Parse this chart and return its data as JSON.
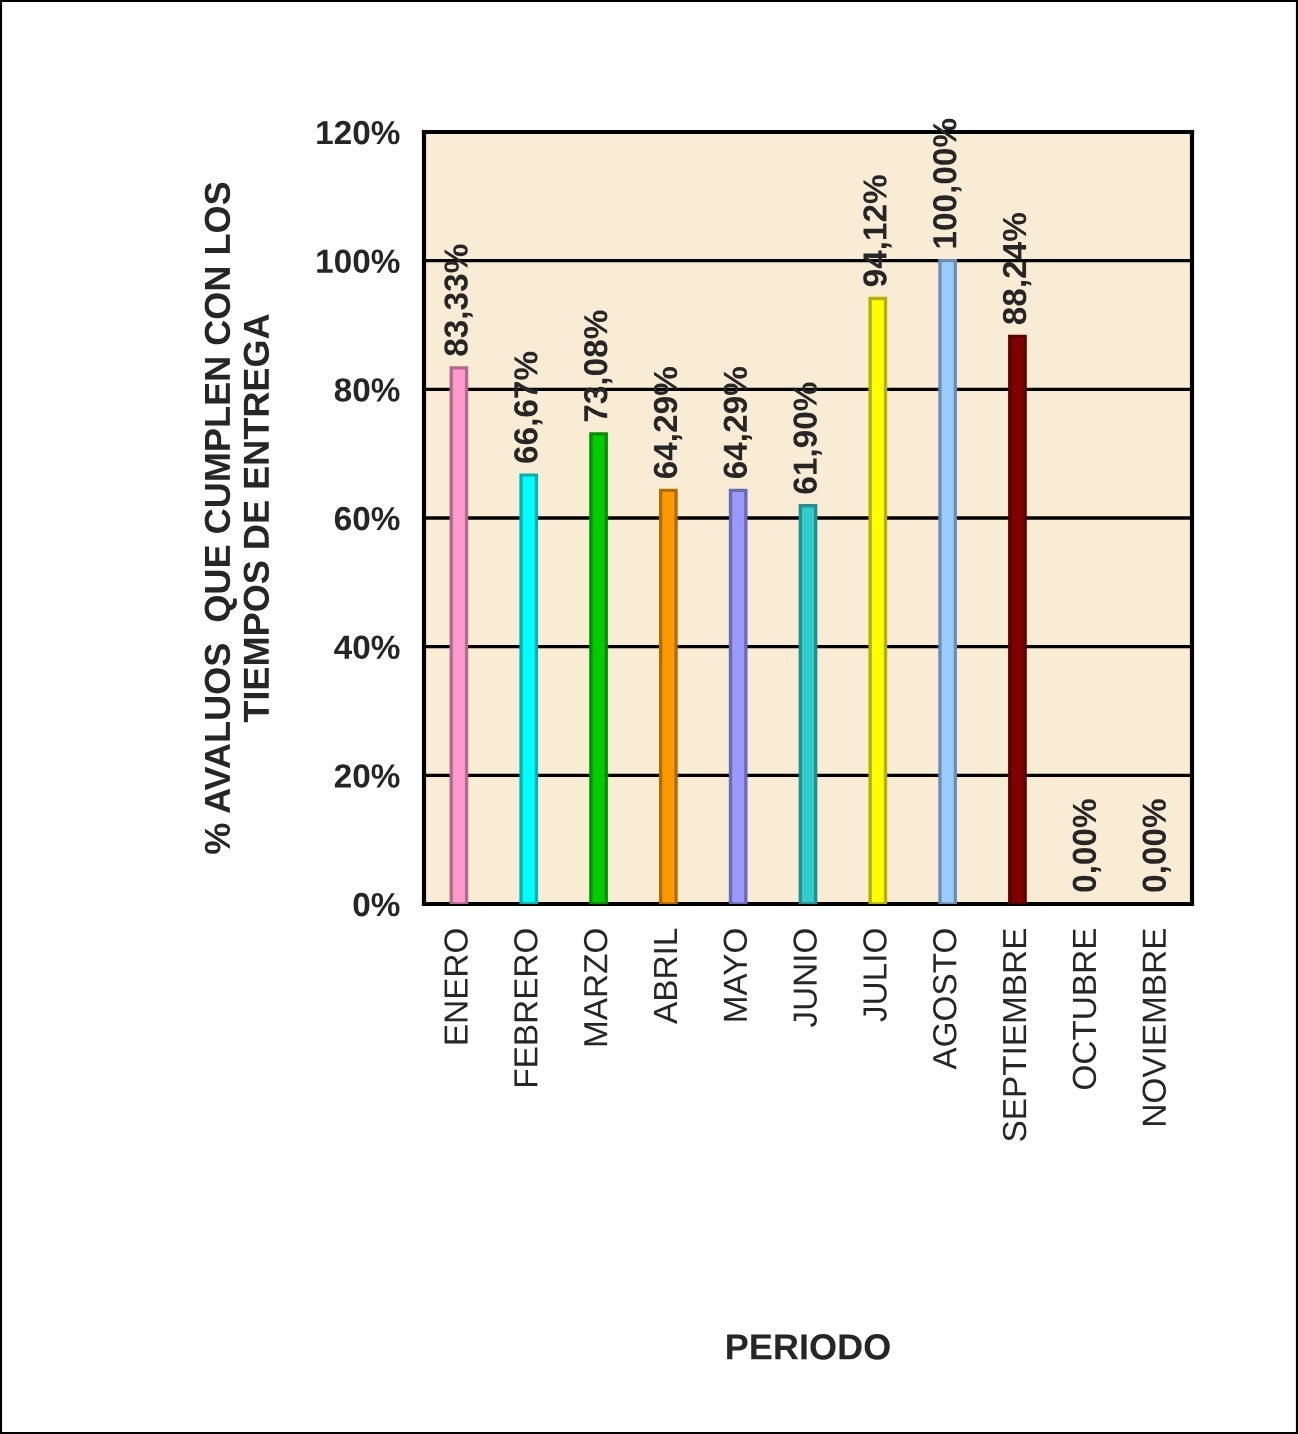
{
  "chart_data": {
    "type": "bar",
    "annotations": [
      "PERIODO"
    ],
    "ylabel": "% AVALUOS  QUE CUMPLEN CON LOS\nTIEMPOS DE ENTREGA",
    "categories": [
      "ENERO",
      "FEBRERO",
      "MARZO",
      "ABRIL",
      "MAYO",
      "JUNIO",
      "JULIO",
      "AGOSTO",
      "SEPTIEMBRE",
      "OCTUBRE",
      "NOVIEMBRE"
    ],
    "values": [
      83.33,
      66.67,
      73.08,
      64.29,
      64.29,
      61.9,
      94.12,
      100.0,
      88.24,
      0.0,
      0.0
    ],
    "value_labels": [
      "83,33%",
      "66,67%",
      "73,08%",
      "64,29%",
      "64,29%",
      "61,90%",
      "94,12%",
      "100,00%",
      "88,24%",
      "0,00%",
      "0,00%"
    ],
    "colors": [
      "#ff99cc",
      "#00ffff",
      "#00cc00",
      "#ff9900",
      "#9999ff",
      "#33cccc",
      "#ffff00",
      "#99ccff",
      "#800000",
      null,
      null
    ],
    "ylim": [
      0,
      120
    ],
    "yticks": [
      {
        "value": 0,
        "label": "0%"
      },
      {
        "value": 20,
        "label": "20%"
      },
      {
        "value": 40,
        "label": "40%"
      },
      {
        "value": 60,
        "label": "60%"
      },
      {
        "value": 80,
        "label": "80%"
      },
      {
        "value": 100,
        "label": "100%"
      },
      {
        "value": 120,
        "label": "120%"
      }
    ],
    "grid": "y",
    "legend": false
  }
}
